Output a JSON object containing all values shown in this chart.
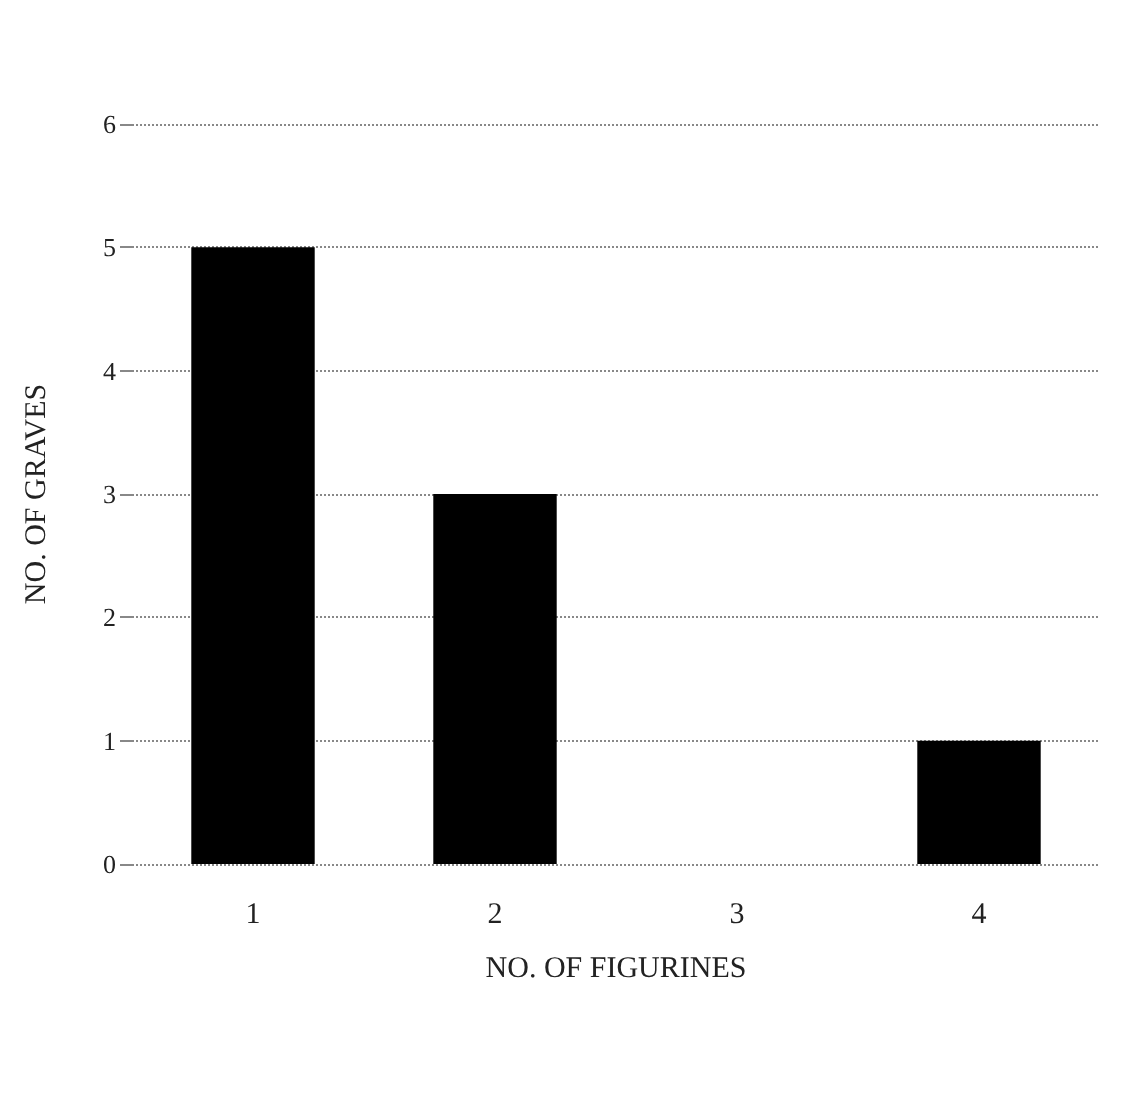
{
  "chart_data": {
    "type": "bar",
    "xlabel": "NO. OF FIGURINES",
    "ylabel": "NO. OF GRAVES",
    "categories": [
      "1",
      "2",
      "3",
      "4"
    ],
    "values": [
      5,
      3,
      0,
      1
    ],
    "color": "#000000",
    "ylim": [
      0,
      6
    ],
    "yticks": [
      0,
      1,
      2,
      3,
      4,
      5,
      6
    ],
    "grid": "y",
    "line_style": "dotted"
  }
}
